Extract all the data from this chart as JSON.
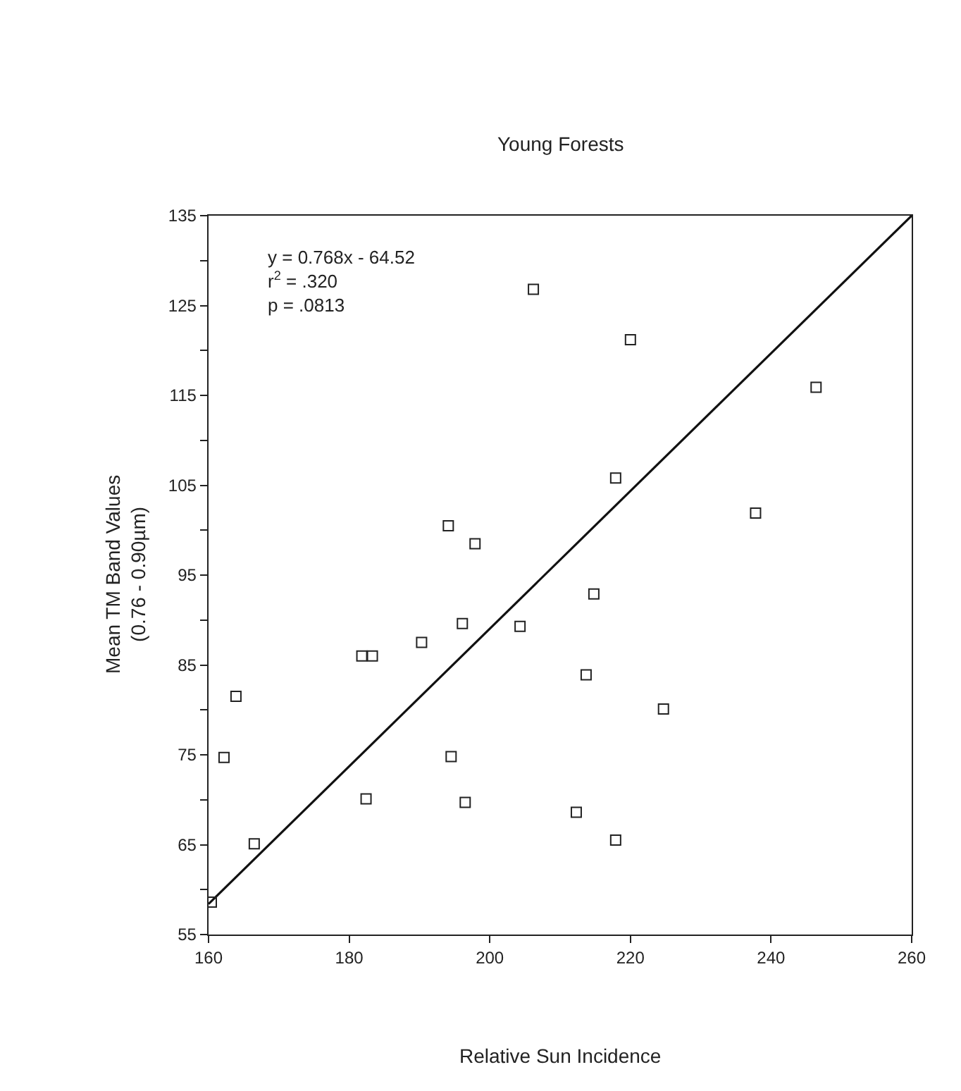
{
  "chart_data": {
    "type": "scatter",
    "title": "Young Forests",
    "xlabel": "Relative Sun Incidence",
    "ylabel": "Mean TM Band Values\n(0.76 - 0.90µm)",
    "annotations": [
      "y = 0.768x - 64.52\nr$^{2}$ = .320\np = .0813"
    ],
    "series": [
      {
        "color": "#222222",
        "x": [
          206.2,
          194.1,
          197.9,
          196.1,
          204.3,
          190.3,
          181.8,
          183.3,
          163.9,
          162.2,
          194.5,
          182.4,
          196.5,
          166.5,
          160.4,
          220.0,
          246.4,
          217.9,
          237.8,
          214.8,
          213.7,
          224.7,
          212.3,
          217.9
        ],
        "values": [
          126.8,
          100.5,
          98.5,
          89.6,
          89.3,
          87.5,
          86.0,
          86.0,
          81.5,
          74.7,
          74.8,
          70.1,
          69.7,
          65.1,
          58.6,
          121.2,
          115.9,
          105.8,
          101.9,
          92.9,
          83.9,
          80.1,
          68.6,
          65.5
        ]
      },
      {
        "type": "line",
        "color": "#111111",
        "marker": "none",
        "line_style": "solid",
        "x": [
          160,
          260
        ],
        "values": [
          58.4,
          135
        ]
      }
    ],
    "xlim": [
      160,
      260
    ],
    "xticks": [
      160,
      180,
      200,
      220,
      240,
      260
    ],
    "ylim": [
      55,
      135
    ],
    "yticks": [
      55,
      {
        "value": 60,
        "label": null
      },
      65,
      {
        "value": 70,
        "label": null
      },
      75,
      {
        "value": 80,
        "label": null
      },
      85,
      {
        "value": 90,
        "label": null
      },
      95,
      {
        "value": 100,
        "label": null
      },
      105,
      {
        "value": 110,
        "label": null
      },
      115,
      {
        "value": 120,
        "label": null
      },
      125,
      {
        "value": 130,
        "label": null
      },
      135
    ],
    "marker": "square"
  }
}
